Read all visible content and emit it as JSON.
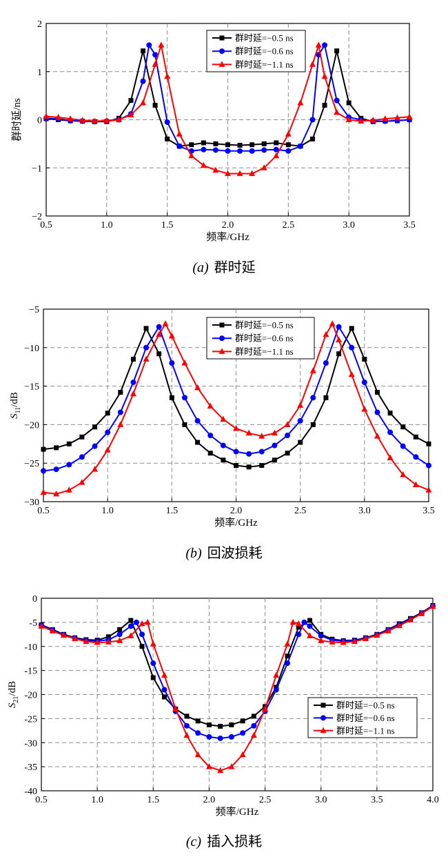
{
  "chart_data": [
    {
      "type": "line",
      "panel": "a",
      "caption_tag": "(a)",
      "caption_text": "群时延",
      "xlabel": "频率/GHz",
      "ylabel": "群时延/ns",
      "ylabel_main": "",
      "ylabel_sub": "",
      "ylabel_suffix": "",
      "xlim": [
        0.5,
        3.5
      ],
      "ylim": [
        -2,
        2
      ],
      "xticks": [
        "0.5",
        "1.0",
        "1.5",
        "2.0",
        "2.5",
        "3.0",
        "3.5"
      ],
      "yticks": [
        "2",
        "1",
        "0",
        "−1",
        "−2"
      ],
      "grid": true,
      "legend_position": "top-right",
      "series": [
        {
          "name": "群时延=−0.5 ns",
          "color": "#000000",
          "marker": "square",
          "x": [
            0.5,
            0.6,
            0.7,
            0.8,
            0.9,
            1.0,
            1.1,
            1.2,
            1.3,
            1.4,
            1.5,
            1.6,
            1.7,
            1.8,
            1.9,
            2.0,
            2.1,
            2.2,
            2.3,
            2.4,
            2.5,
            2.6,
            2.7,
            2.8,
            2.9,
            3.0,
            3.1,
            3.2,
            3.3,
            3.4,
            3.5
          ],
          "y": [
            0.02,
            0.0,
            -0.02,
            -0.03,
            -0.04,
            -0.04,
            0.03,
            0.4,
            1.43,
            0.3,
            -0.4,
            -0.55,
            -0.52,
            -0.48,
            -0.5,
            -0.52,
            -0.53,
            -0.52,
            -0.5,
            -0.48,
            -0.52,
            -0.55,
            -0.4,
            0.3,
            1.43,
            0.35,
            0.03,
            -0.04,
            -0.03,
            -0.02,
            0.0
          ]
        },
        {
          "name": "群时延=−0.6 ns",
          "color": "#0000ff",
          "marker": "circle",
          "x": [
            0.5,
            0.6,
            0.7,
            0.8,
            0.9,
            1.0,
            1.1,
            1.2,
            1.3,
            1.35,
            1.4,
            1.5,
            1.6,
            1.7,
            1.8,
            1.9,
            2.0,
            2.1,
            2.2,
            2.3,
            2.4,
            2.5,
            2.6,
            2.7,
            2.75,
            2.8,
            2.9,
            3.0,
            3.1,
            3.2,
            3.3,
            3.4,
            3.5
          ],
          "y": [
            0.03,
            0.02,
            -0.02,
            -0.03,
            -0.04,
            -0.03,
            0.0,
            0.12,
            0.8,
            1.55,
            1.35,
            -0.05,
            -0.55,
            -0.65,
            -0.62,
            -0.63,
            -0.65,
            -0.65,
            -0.65,
            -0.63,
            -0.62,
            -0.65,
            -0.55,
            0.0,
            1.35,
            1.55,
            0.4,
            0.05,
            0.0,
            -0.03,
            -0.03,
            -0.02,
            0.0
          ]
        },
        {
          "name": "群时延=−1.1 ns",
          "color": "#ff0000",
          "marker": "triangle",
          "x": [
            0.5,
            0.6,
            0.7,
            0.8,
            0.9,
            1.0,
            1.1,
            1.2,
            1.3,
            1.4,
            1.45,
            1.5,
            1.6,
            1.7,
            1.8,
            1.9,
            2.0,
            2.1,
            2.2,
            2.3,
            2.4,
            2.5,
            2.6,
            2.7,
            2.75,
            2.8,
            2.9,
            3.0,
            3.1,
            3.2,
            3.3,
            3.4,
            3.5
          ],
          "y": [
            0.07,
            0.05,
            0.02,
            -0.01,
            -0.03,
            -0.02,
            0.0,
            0.1,
            0.35,
            1.15,
            1.55,
            0.9,
            -0.3,
            -0.75,
            -0.95,
            -1.05,
            -1.12,
            -1.12,
            -1.12,
            -1.0,
            -0.75,
            -0.3,
            0.35,
            1.15,
            1.55,
            0.9,
            0.15,
            0.0,
            -0.03,
            -0.01,
            0.02,
            0.04,
            0.06
          ]
        }
      ]
    },
    {
      "type": "line",
      "panel": "b",
      "caption_tag": "(b)",
      "caption_text": "回波损耗",
      "xlabel": "频率/GHz",
      "ylabel": "",
      "ylabel_main": "S",
      "ylabel_sub": "11",
      "ylabel_suffix": "/dB",
      "xlim": [
        0.5,
        3.5
      ],
      "ylim": [
        -30,
        -5
      ],
      "xticks": [
        "0.5",
        "1.0",
        "1.5",
        "2.0",
        "2.5",
        "3.0",
        "3.5"
      ],
      "yticks": [
        "−5",
        "−10",
        "−15",
        "−20",
        "−25",
        "−30"
      ],
      "grid": true,
      "legend_position": "top-right",
      "series": [
        {
          "name": "群时延=−0.5 ns",
          "color": "#000000",
          "marker": "square",
          "x": [
            0.5,
            0.6,
            0.7,
            0.8,
            0.9,
            1.0,
            1.1,
            1.2,
            1.3,
            1.4,
            1.5,
            1.6,
            1.7,
            1.8,
            1.9,
            2.0,
            2.1,
            2.2,
            2.3,
            2.4,
            2.5,
            2.6,
            2.7,
            2.8,
            2.9,
            3.0,
            3.1,
            3.2,
            3.3,
            3.4,
            3.5
          ],
          "y": [
            -23.2,
            -23.0,
            -22.5,
            -21.6,
            -20.3,
            -18.5,
            -15.8,
            -11.5,
            -7.5,
            -10.8,
            -16.5,
            -20.0,
            -22.3,
            -23.7,
            -24.6,
            -25.3,
            -25.5,
            -25.3,
            -24.6,
            -23.7,
            -22.3,
            -20.0,
            -16.5,
            -10.8,
            -7.5,
            -11.5,
            -15.8,
            -18.5,
            -20.3,
            -21.6,
            -22.5
          ]
        },
        {
          "name": "群时延=−0.6 ns",
          "color": "#0000ff",
          "marker": "circle",
          "x": [
            0.5,
            0.6,
            0.7,
            0.8,
            0.9,
            1.0,
            1.1,
            1.2,
            1.3,
            1.4,
            1.5,
            1.6,
            1.7,
            1.8,
            1.9,
            2.0,
            2.1,
            2.2,
            2.3,
            2.4,
            2.5,
            2.6,
            2.7,
            2.8,
            2.9,
            3.0,
            3.1,
            3.2,
            3.3,
            3.4,
            3.5
          ],
          "y": [
            -26.0,
            -25.8,
            -25.2,
            -24.2,
            -22.8,
            -21.0,
            -18.4,
            -14.5,
            -10.0,
            -7.3,
            -12.0,
            -16.5,
            -19.5,
            -21.4,
            -22.7,
            -23.5,
            -23.8,
            -23.5,
            -22.7,
            -21.4,
            -19.5,
            -16.5,
            -12.0,
            -7.3,
            -10.0,
            -14.5,
            -18.4,
            -21.0,
            -22.8,
            -24.2,
            -25.3
          ]
        },
        {
          "name": "群时延=−1.1 ns",
          "color": "#ff0000",
          "marker": "triangle",
          "x": [
            0.5,
            0.6,
            0.7,
            0.8,
            0.9,
            1.0,
            1.1,
            1.2,
            1.3,
            1.4,
            1.45,
            1.5,
            1.6,
            1.7,
            1.8,
            1.9,
            2.0,
            2.1,
            2.2,
            2.3,
            2.4,
            2.5,
            2.6,
            2.7,
            2.75,
            2.8,
            2.9,
            3.0,
            3.1,
            3.2,
            3.3,
            3.4,
            3.5
          ],
          "y": [
            -28.8,
            -29.0,
            -28.5,
            -27.5,
            -25.8,
            -23.3,
            -20.0,
            -16.0,
            -11.5,
            -8.3,
            -6.9,
            -8.5,
            -12.0,
            -15.2,
            -17.6,
            -19.3,
            -20.5,
            -21.1,
            -21.5,
            -21.1,
            -20.0,
            -17.5,
            -13.0,
            -8.3,
            -6.9,
            -9.0,
            -13.5,
            -18.0,
            -21.5,
            -24.3,
            -26.5,
            -27.8,
            -28.5
          ]
        }
      ]
    },
    {
      "type": "line",
      "panel": "c",
      "caption_tag": "(c)",
      "caption_text": "插入损耗",
      "xlabel": "频率/GHz",
      "ylabel": "",
      "ylabel_main": "S",
      "ylabel_sub": "21",
      "ylabel_suffix": "/dB",
      "xlim": [
        0.5,
        4.0
      ],
      "ylim": [
        -40,
        0
      ],
      "xticks": [
        "0.5",
        "1.0",
        "1.5",
        "2.0",
        "2.5",
        "3.0",
        "3.5",
        "4.0"
      ],
      "yticks": [
        "0",
        "-5",
        "-10",
        "-15",
        "-20",
        "-25",
        "-30",
        "-35",
        "-40"
      ],
      "grid": true,
      "legend_position": "right",
      "series": [
        {
          "name": "群时延=−0.5 ns",
          "color": "#000000",
          "marker": "square",
          "x": [
            0.5,
            0.6,
            0.7,
            0.8,
            0.9,
            1.0,
            1.1,
            1.2,
            1.3,
            1.4,
            1.5,
            1.6,
            1.7,
            1.8,
            1.9,
            2.0,
            2.1,
            2.2,
            2.3,
            2.4,
            2.5,
            2.6,
            2.7,
            2.8,
            2.9,
            3.0,
            3.1,
            3.2,
            3.3,
            3.4,
            3.5,
            3.6,
            3.7,
            3.8,
            3.9,
            4.0
          ],
          "y": [
            -5.5,
            -6.5,
            -7.5,
            -8.2,
            -8.6,
            -8.7,
            -8.0,
            -6.5,
            -4.6,
            -10.0,
            -16.5,
            -20.5,
            -23.0,
            -24.5,
            -25.5,
            -26.3,
            -26.6,
            -26.3,
            -25.5,
            -24.5,
            -22.5,
            -18.5,
            -12.0,
            -6.0,
            -4.6,
            -7.5,
            -8.5,
            -8.8,
            -8.7,
            -8.2,
            -7.5,
            -6.5,
            -5.3,
            -4.2,
            -3.0,
            -1.5
          ]
        },
        {
          "name": "群时延=−0.6 ns",
          "color": "#0000ff",
          "marker": "circle",
          "x": [
            0.5,
            0.6,
            0.7,
            0.8,
            0.9,
            1.0,
            1.1,
            1.2,
            1.3,
            1.35,
            1.4,
            1.5,
            1.6,
            1.7,
            1.8,
            1.9,
            2.0,
            2.1,
            2.2,
            2.3,
            2.4,
            2.5,
            2.6,
            2.7,
            2.8,
            2.85,
            2.9,
            3.0,
            3.1,
            3.2,
            3.3,
            3.4,
            3.5,
            3.6,
            3.7,
            3.8,
            3.9,
            4.0
          ],
          "y": [
            -5.6,
            -6.6,
            -7.6,
            -8.3,
            -8.8,
            -8.9,
            -8.6,
            -7.5,
            -5.8,
            -5.0,
            -7.5,
            -13.5,
            -19.0,
            -23.5,
            -26.5,
            -28.0,
            -28.8,
            -29.1,
            -28.8,
            -28.0,
            -26.5,
            -23.5,
            -19.0,
            -13.5,
            -7.5,
            -5.0,
            -5.8,
            -7.8,
            -8.7,
            -8.9,
            -8.8,
            -8.3,
            -7.6,
            -6.6,
            -5.5,
            -4.4,
            -3.1,
            -1.6
          ]
        },
        {
          "name": "群时延=−1.1 ns",
          "color": "#ff0000",
          "marker": "triangle",
          "x": [
            0.5,
            0.6,
            0.7,
            0.8,
            0.9,
            1.0,
            1.1,
            1.2,
            1.3,
            1.4,
            1.45,
            1.5,
            1.6,
            1.7,
            1.8,
            1.9,
            2.0,
            2.1,
            2.2,
            2.3,
            2.4,
            2.5,
            2.6,
            2.7,
            2.75,
            2.8,
            2.9,
            3.0,
            3.1,
            3.2,
            3.3,
            3.4,
            3.5,
            3.6,
            3.7,
            3.8,
            3.9,
            4.0
          ],
          "y": [
            -5.8,
            -6.8,
            -7.7,
            -8.4,
            -9.0,
            -9.2,
            -9.1,
            -8.8,
            -7.8,
            -5.3,
            -5.0,
            -9.5,
            -16.0,
            -23.0,
            -28.5,
            -32.5,
            -35.0,
            -35.8,
            -35.0,
            -32.5,
            -28.5,
            -23.0,
            -16.0,
            -9.5,
            -5.0,
            -5.3,
            -7.8,
            -8.8,
            -9.1,
            -9.2,
            -9.0,
            -8.4,
            -7.7,
            -6.8,
            -5.7,
            -4.5,
            -3.2,
            -1.7
          ]
        }
      ]
    }
  ]
}
